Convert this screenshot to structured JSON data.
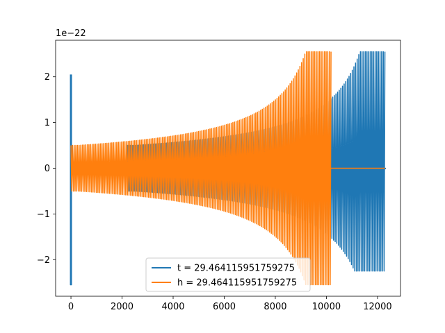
{
  "chart_data": {
    "type": "line",
    "title": "",
    "xlabel": "",
    "ylabel": "",
    "y_offset_label": "1e−22",
    "xlim": [
      -600,
      12900
    ],
    "ylim": [
      -2.8,
      2.8
    ],
    "x_ticks": [
      0,
      2000,
      4000,
      6000,
      8000,
      10000,
      12000
    ],
    "x_tick_labels": [
      "0",
      "2000",
      "4000",
      "6000",
      "8000",
      "10000",
      "12000"
    ],
    "y_ticks": [
      -2,
      -1,
      0,
      1,
      2
    ],
    "y_tick_labels": [
      "−2",
      "−1",
      "0",
      "1",
      "2"
    ],
    "grid": false,
    "legend_position": "lower center",
    "series": [
      {
        "name": "t = 29.464115951759275",
        "color": "#1f77b4",
        "segments": [
          {
            "x": [
              -20,
              20
            ],
            "ymin": -2.55,
            "ymax": 2.05
          },
          {
            "x": [
              20,
              2200
            ],
            "ymin": -0.02,
            "ymax": 0.02
          },
          {
            "x": [
              2200,
              12290
            ],
            "envelope": "chirp",
            "amp_start": 0.5,
            "amp_end": 2.55,
            "trough_end": -2.25
          },
          {
            "x": [
              12290,
              12310
            ],
            "ymin": -0.01,
            "ymax": 0.01
          }
        ]
      },
      {
        "name": "h = 29.464115951759275",
        "color": "#ff7f0e",
        "segments": [
          {
            "x": [
              0,
              10180
            ],
            "envelope": "chirp",
            "amp_start": 0.5,
            "amp_end": 2.55,
            "trough_end": -2.55
          },
          {
            "x": [
              10180,
              12290
            ],
            "ymin": 0,
            "ymax": 0
          }
        ]
      }
    ]
  }
}
